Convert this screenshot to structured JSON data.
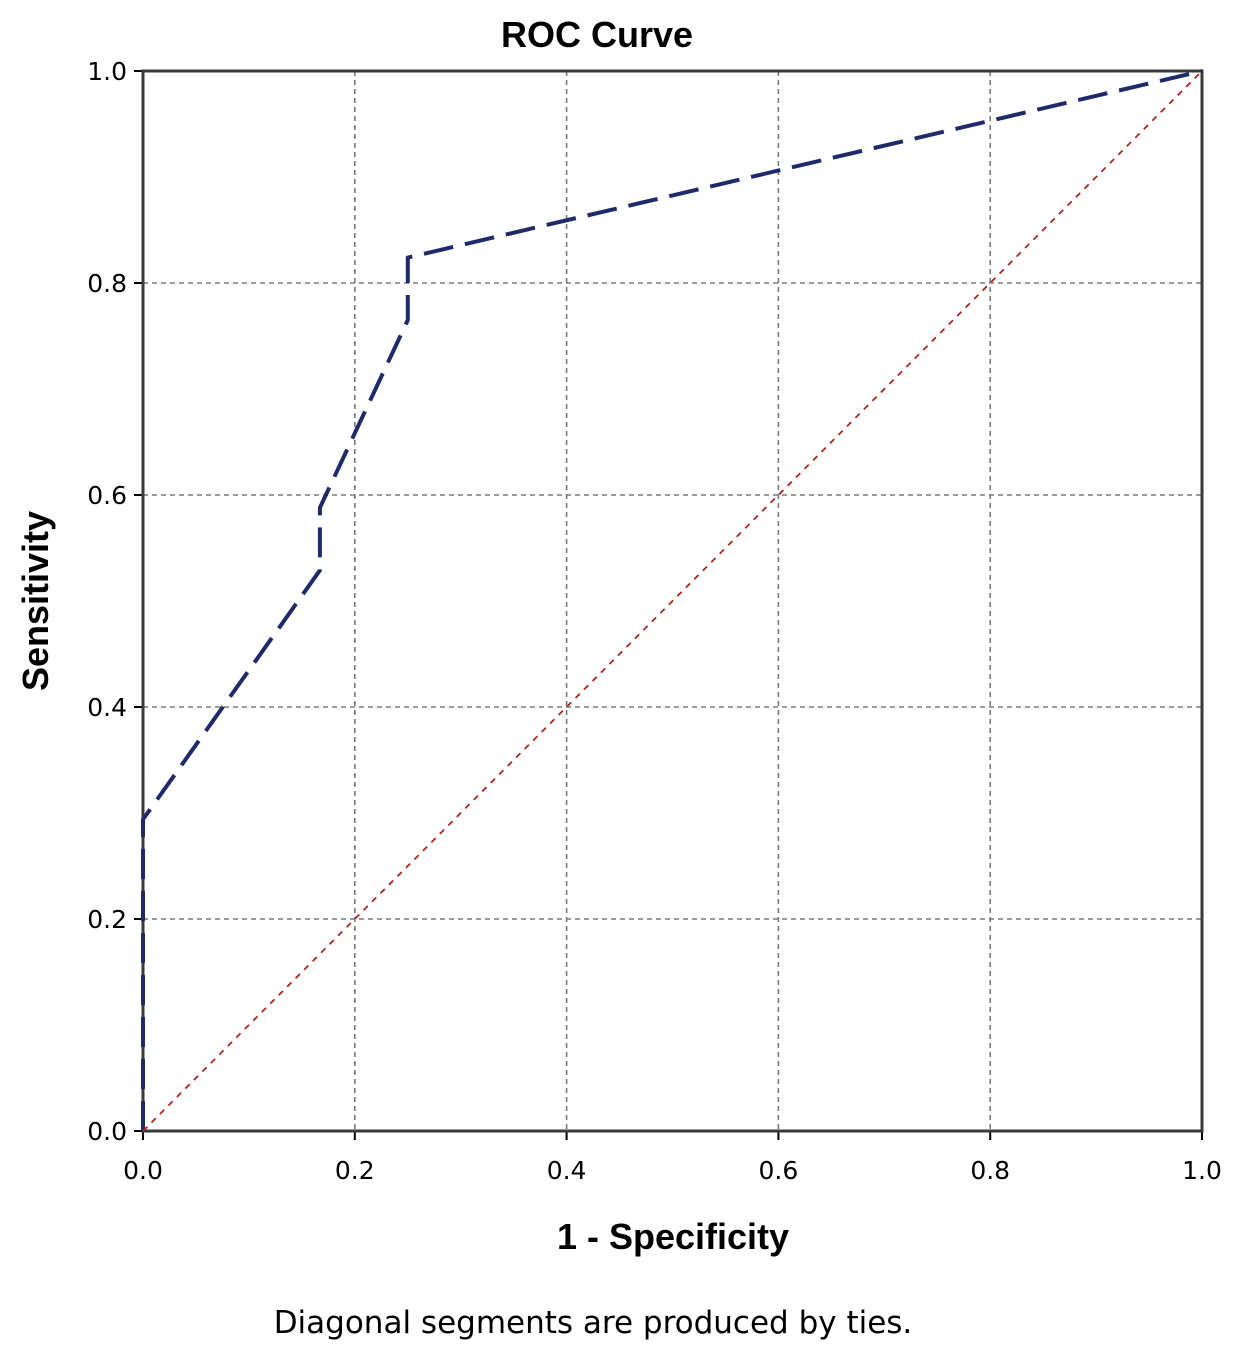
{
  "chart_data": {
    "type": "line",
    "title": "ROC Curve",
    "xlabel": "1 - Specificity",
    "ylabel": "Sensitivity",
    "footnote": "Diagonal segments are produced by ties.",
    "xlim": [
      0.0,
      1.0
    ],
    "ylim": [
      0.0,
      1.0
    ],
    "x_ticks": [
      "0.0",
      "0.2",
      "0.4",
      "0.6",
      "0.8",
      "1.0"
    ],
    "y_ticks": [
      "0.0",
      "0.2",
      "0.4",
      "0.6",
      "0.8",
      "1.0"
    ],
    "grid": true,
    "series": [
      {
        "style": "long-dash",
        "color": "#1f2a6b",
        "x": [
          0.0,
          0.0,
          0.167,
          0.167,
          0.25,
          0.25,
          1.0
        ],
        "y": [
          0.0,
          0.294,
          0.529,
          0.588,
          0.765,
          0.824,
          1.0
        ]
      },
      {
        "style": "dotted",
        "color": "#b22222",
        "x": [
          0.0,
          1.0
        ],
        "y": [
          0.0,
          1.0
        ]
      }
    ]
  }
}
